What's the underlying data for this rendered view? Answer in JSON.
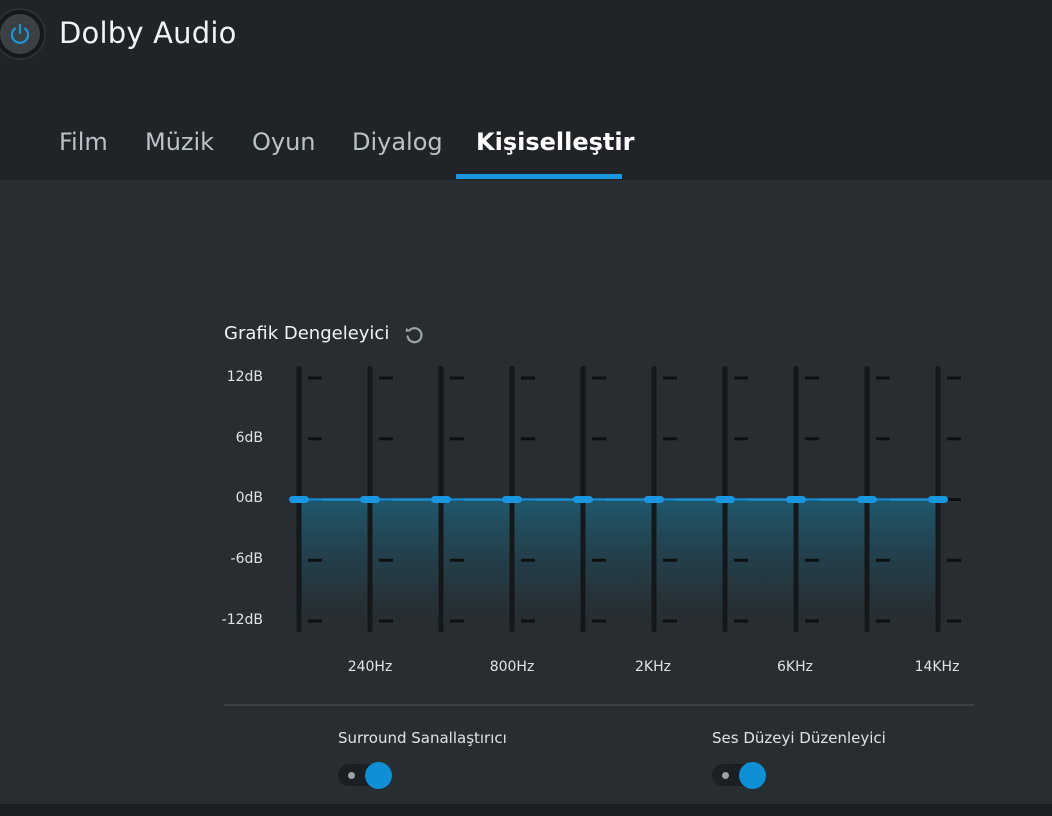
{
  "app": {
    "title": "Dolby Audio"
  },
  "tabs": [
    {
      "label": "Film"
    },
    {
      "label": "Müzik"
    },
    {
      "label": "Oyun"
    },
    {
      "label": "Diyalog"
    },
    {
      "label": "Kişiselleştir",
      "active": true
    }
  ],
  "equalizer": {
    "title": "Grafik Dengeleyici",
    "reset_icon": "reset-icon",
    "db_labels": [
      "12dB",
      "6dB",
      "0dB",
      "-6dB",
      "-12dB"
    ],
    "freq_labels": [
      "240Hz",
      "800Hz",
      "2KHz",
      "6KHz",
      "14KHz"
    ],
    "band_count": 10,
    "band_gains_db": [
      0,
      0,
      0,
      0,
      0,
      0,
      0,
      0,
      0,
      0
    ],
    "db_range": [
      -12,
      12
    ]
  },
  "toggles": {
    "surround": {
      "label": "Surround Sanallaştırıcı",
      "on": true
    },
    "volume_leveler": {
      "label": "Ses Düzeyi Düzenleyici",
      "on": true
    }
  },
  "colors": {
    "accent": "#1a96e0",
    "knob": "#0f8fd6",
    "header_bg": "#202428",
    "content_bg": "#272d31"
  }
}
